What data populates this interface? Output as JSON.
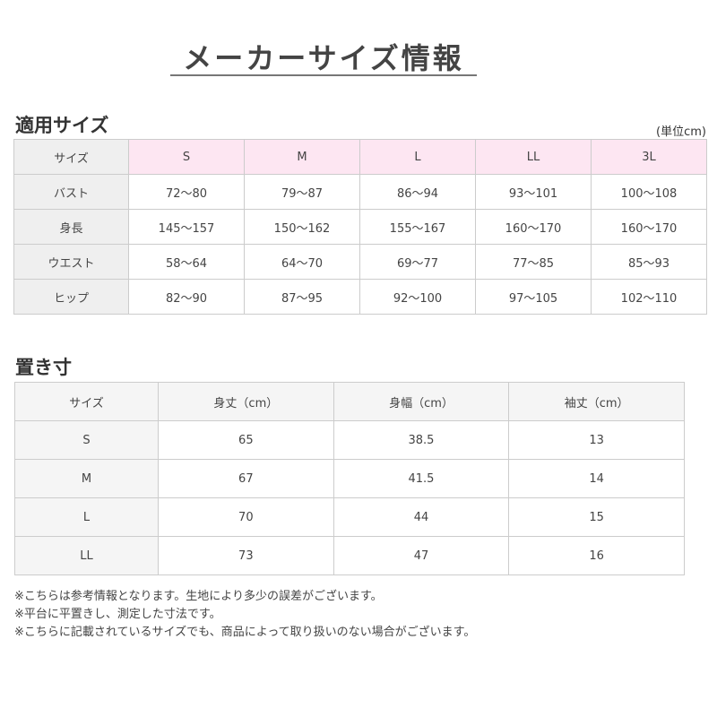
{
  "title": "メーカーサイズ情報",
  "applicable": {
    "heading": "適用サイズ",
    "unit": "(単位cm)",
    "header": [
      "サイズ",
      "S",
      "M",
      "L",
      "LL",
      "3L"
    ],
    "rows": [
      [
        "バスト",
        "72〜80",
        "79〜87",
        "86〜94",
        "93〜101",
        "100〜108"
      ],
      [
        "身長",
        "145〜157",
        "150〜162",
        "155〜167",
        "160〜170",
        "160〜170"
      ],
      [
        "ウエスト",
        "58〜64",
        "64〜70",
        "69〜77",
        "77〜85",
        "85〜93"
      ],
      [
        "ヒップ",
        "82〜90",
        "87〜95",
        "92〜100",
        "97〜105",
        "102〜110"
      ]
    ]
  },
  "flat": {
    "heading": "置き寸",
    "header": [
      "サイズ",
      "身丈（cm）",
      "身幅（cm）",
      "袖丈（cm）"
    ],
    "rows": [
      [
        "S",
        "65",
        "38.5",
        "13"
      ],
      [
        "M",
        "67",
        "41.5",
        "14"
      ],
      [
        "L",
        "70",
        "44",
        "15"
      ],
      [
        "LL",
        "73",
        "47",
        "16"
      ]
    ]
  },
  "notes": [
    "※こちらは参考情報となります。生地により多少の誤差がございます。",
    "※平台に平置きし、測定した寸法です。",
    "※こちらに記載されているサイズでも、商品によって取り扱いのない場合がございます。"
  ]
}
